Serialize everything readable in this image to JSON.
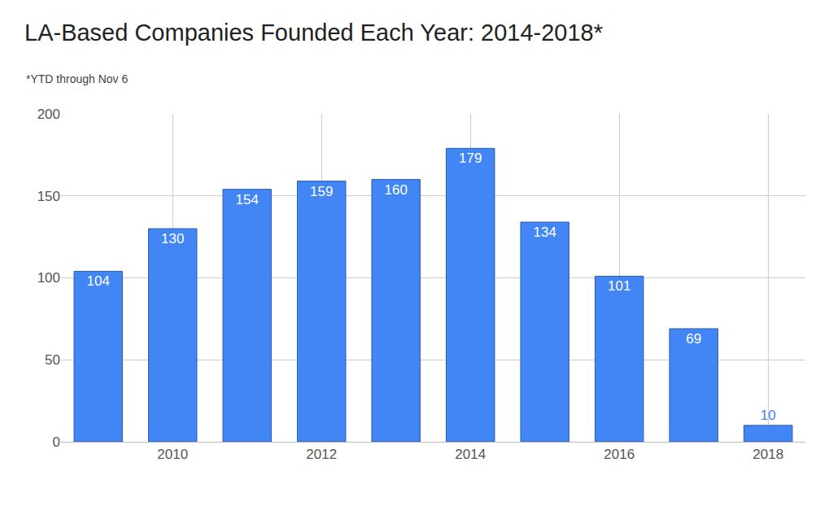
{
  "chart_data": {
    "type": "bar",
    "title": "LA-Based Companies Founded Each Year: 2014-2018*",
    "subtitle": "*YTD through Nov 6",
    "x": [
      2009,
      2010,
      2011,
      2012,
      2013,
      2014,
      2015,
      2016,
      2017,
      2018
    ],
    "values": [
      104,
      130,
      154,
      159,
      160,
      179,
      134,
      101,
      69,
      10
    ],
    "color": "#4285f4",
    "xlim": [
      2008.5,
      2018.5
    ],
    "xticks": [
      2010,
      2012,
      2014,
      2016,
      2018
    ],
    "ylim": [
      0,
      200
    ],
    "yticks": [
      0,
      50,
      100,
      150,
      200
    ],
    "grid": true,
    "data_labels": true
  }
}
